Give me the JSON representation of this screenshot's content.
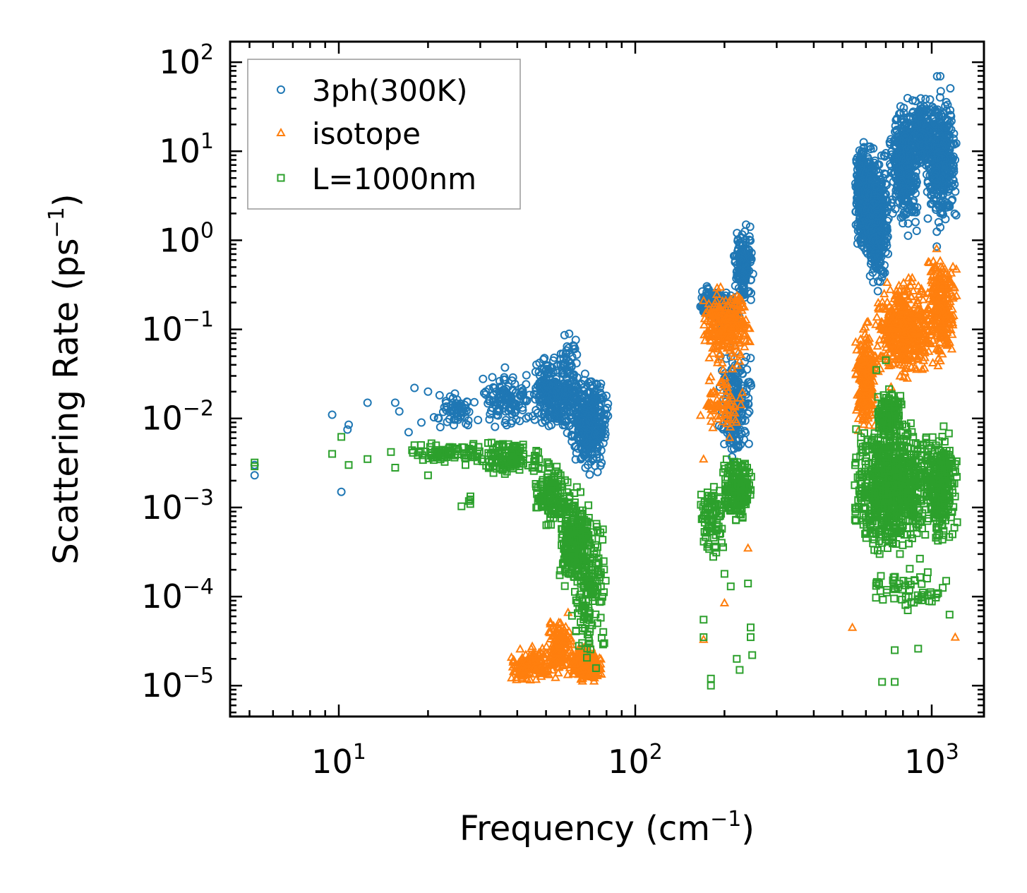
{
  "chart_data": {
    "type": "scatter",
    "xscale": "log",
    "yscale": "log",
    "xlim": [
      4.3,
      1500
    ],
    "ylim": [
      4.5e-06,
      170
    ],
    "x_tick_values": [
      10,
      100,
      1000
    ],
    "x_tick_labels": [
      {
        "base": "10",
        "exp": "1"
      },
      {
        "base": "10",
        "exp": "2"
      },
      {
        "base": "10",
        "exp": "3"
      }
    ],
    "y_tick_values": [
      1e-05,
      0.0001,
      0.001,
      0.01,
      0.1,
      1,
      10,
      100
    ],
    "y_tick_labels": [
      {
        "base": "10",
        "exp": "−5"
      },
      {
        "base": "10",
        "exp": "−4"
      },
      {
        "base": "10",
        "exp": "−3"
      },
      {
        "base": "10",
        "exp": "−2"
      },
      {
        "base": "10",
        "exp": "−1"
      },
      {
        "base": "10",
        "exp": "0"
      },
      {
        "base": "10",
        "exp": "1"
      },
      {
        "base": "10",
        "exp": "2"
      }
    ],
    "xlabel": {
      "main": "Frequency (cm",
      "sup": "−1",
      "tail": ")"
    },
    "ylabel": {
      "main": "Scattering Rate (ps",
      "sup": "−1",
      "tail": ")"
    },
    "legend_position": "top-left",
    "series": [
      {
        "name": "3ph(300K)",
        "marker": "circle",
        "color": "#1f77b4",
        "clusters": [
          {
            "x": 5.2,
            "y": 0.003
          },
          {
            "x": 5.2,
            "y": 0.0023
          },
          {
            "x": 9.5,
            "y": 0.011
          },
          {
            "x": 10.2,
            "y": 0.0015
          },
          {
            "x": 10.7,
            "y": 0.0075
          },
          {
            "x": 10.8,
            "y": 0.0085
          },
          {
            "x": 12.5,
            "y": 0.015
          },
          {
            "x": 15.5,
            "y": 0.015
          },
          {
            "x": 16,
            "y": 0.012
          },
          {
            "x": 17.2,
            "y": 0.007
          },
          {
            "x": 18,
            "y": 0.022
          },
          {
            "x": 19,
            "y": 0.009
          },
          {
            "x": 20,
            "y": 0.02
          },
          {
            "x": 22,
            "y": 0.008
          },
          {
            "x_range": [
              20,
              30
            ],
            "y_range": [
              0.007,
              0.022
            ],
            "n": 60
          },
          {
            "x_range": [
              30,
              45
            ],
            "y_range": [
              0.007,
              0.04
            ],
            "n": 120
          },
          {
            "x_range": [
              45,
              60
            ],
            "y_range": [
              0.006,
              0.06
            ],
            "n": 220
          },
          {
            "x_range": [
              55,
              65
            ],
            "y_range": [
              0.003,
              0.14
            ],
            "n": 120
          },
          {
            "x_range": [
              60,
              82
            ],
            "y_range": [
              0.002,
              0.04
            ],
            "n": 320
          },
          {
            "x_range": [
              165,
              200
            ],
            "y_range": [
              0.12,
              0.32
            ],
            "n": 220
          },
          {
            "x_range": [
              190,
              225
            ],
            "y_range": [
              0.08,
              0.3
            ],
            "n": 100
          },
          {
            "x_range": [
              215,
              250
            ],
            "y_range": [
              0.15,
              1.9
            ],
            "n": 160
          },
          {
            "x_range": [
              190,
              250
            ],
            "y_range": [
              0.002,
              0.1
            ],
            "n": 200
          },
          {
            "x_range": [
              550,
              640
            ],
            "y_range": [
              0.6,
              15
            ],
            "n": 450
          },
          {
            "x_range": [
              600,
              720
            ],
            "y_range": [
              0.2,
              15
            ],
            "n": 350
          },
          {
            "x_range": [
              720,
              900
            ],
            "y_range": [
              1,
              50
            ],
            "n": 400
          },
          {
            "x_range": [
              850,
              1000
            ],
            "y_range": [
              5,
              55
            ],
            "n": 200
          },
          {
            "x_range": [
              950,
              1220
            ],
            "y_range": [
              1,
              75
            ],
            "n": 400
          },
          {
            "x": 1040,
            "y": 1.25
          },
          {
            "x": 1040,
            "y": 0.85
          }
        ]
      },
      {
        "name": "isotope",
        "marker": "triangle",
        "color": "#ff7f0e",
        "clusters": [
          {
            "x_range": [
              37,
              55
            ],
            "y_range": [
              1e-05,
              3e-05
            ],
            "n": 150
          },
          {
            "x_range": [
              50,
              62
            ],
            "y_range": [
              1e-05,
              7e-05
            ],
            "n": 150
          },
          {
            "x_range": [
              60,
              78
            ],
            "y_range": [
              1e-05,
              3e-05
            ],
            "n": 200
          },
          {
            "x_range": [
              165,
              250
            ],
            "y_range": [
              0.03,
              0.4
            ],
            "n": 250
          },
          {
            "x_range": [
              165,
              240
            ],
            "y_range": [
              0.005,
              0.05
            ],
            "n": 70
          },
          {
            "x": 170,
            "y": 0.0035
          },
          {
            "x": 200,
            "y": 8.5e-05
          },
          {
            "x": 240,
            "y": 0.00035
          },
          {
            "x": 170,
            "y": 3.3e-05
          },
          {
            "x_range": [
              550,
              650
            ],
            "y_range": [
              0.005,
              0.15
            ],
            "n": 250
          },
          {
            "x_range": [
              640,
              1000
            ],
            "y_range": [
              0.02,
              0.5
            ],
            "n": 450
          },
          {
            "x_range": [
              950,
              1220
            ],
            "y_range": [
              0.03,
              1.1
            ],
            "n": 250
          },
          {
            "x": 540,
            "y": 4.5e-05
          },
          {
            "x": 1200,
            "y": 3.5e-05
          }
        ]
      },
      {
        "name": "L=1000nm",
        "marker": "square",
        "color": "#2ca02c",
        "clusters": [
          {
            "x": 5.2,
            "y": 0.0032
          },
          {
            "x": 5.2,
            "y": 0.0029
          },
          {
            "x": 9.5,
            "y": 0.004
          },
          {
            "x": 10.2,
            "y": 0.0062
          },
          {
            "x": 10.8,
            "y": 0.003
          },
          {
            "x": 12.5,
            "y": 0.0035
          },
          {
            "x": 15,
            "y": 0.0042
          },
          {
            "x": 15.5,
            "y": 0.0028
          },
          {
            "x": 18,
            "y": 0.005
          },
          {
            "x": 20,
            "y": 0.0023
          },
          {
            "x_range": [
              17,
              35
            ],
            "y_range": [
              0.0028,
              0.006
            ],
            "n": 80
          },
          {
            "x_range": [
              25,
              30
            ],
            "y_range": [
              0.0009,
              0.0016
            ],
            "n": 5
          },
          {
            "x_range": [
              30,
              50
            ],
            "y_range": [
              0.002,
              0.006
            ],
            "n": 120
          },
          {
            "x_range": [
              45,
              60
            ],
            "y_range": [
              0.0005,
              0.004
            ],
            "n": 150
          },
          {
            "x_range": [
              55,
              70
            ],
            "y_range": [
              0.0001,
              0.002
            ],
            "n": 250
          },
          {
            "x_range": [
              60,
              80
            ],
            "y_range": [
              1e-05,
              0.002
            ],
            "n": 180
          },
          {
            "x": 78,
            "y": 4e-05
          },
          {
            "x_range": [
              165,
              200
            ],
            "y_range": [
              0.0002,
              0.003
            ],
            "n": 80
          },
          {
            "x_range": [
              195,
              250
            ],
            "y_range": [
              0.0005,
              0.005
            ],
            "n": 180
          },
          {
            "x": 170,
            "y": 3.5e-05
          },
          {
            "x": 170,
            "y": 5.5e-05
          },
          {
            "x": 180,
            "y": 1.2e-05
          },
          {
            "x": 180,
            "y": 1e-05
          },
          {
            "x": 200,
            "y": 0.00018
          },
          {
            "x": 210,
            "y": 0.00013
          },
          {
            "x": 220,
            "y": 2e-05
          },
          {
            "x": 225,
            "y": 1.5e-05
          },
          {
            "x": 240,
            "y": 0.00014
          },
          {
            "x": 245,
            "y": 4.5e-05
          },
          {
            "x": 245,
            "y": 3.5e-05
          },
          {
            "x": 248,
            "y": 2.2e-05
          },
          {
            "x_range": [
              540,
              1000
            ],
            "y_range": [
              0.0002,
              0.015
            ],
            "n": 800
          },
          {
            "x_range": [
              650,
              800
            ],
            "y_range": [
              0.005,
              0.025
            ],
            "n": 150
          },
          {
            "x_range": [
              950,
              1220
            ],
            "y_range": [
              0.0003,
              0.01
            ],
            "n": 300
          },
          {
            "x_range": [
              600,
              1200
            ],
            "y_range": [
              5e-05,
              0.0003
            ],
            "n": 60
          },
          {
            "x": 680,
            "y": 1.1e-05
          },
          {
            "x": 750,
            "y": 1.1e-05
          },
          {
            "x": 750,
            "y": 2.5e-05
          },
          {
            "x": 900,
            "y": 2.6e-05
          },
          {
            "x": 650,
            "y": 0.035
          },
          {
            "x": 700,
            "y": 0.045
          }
        ]
      }
    ]
  }
}
